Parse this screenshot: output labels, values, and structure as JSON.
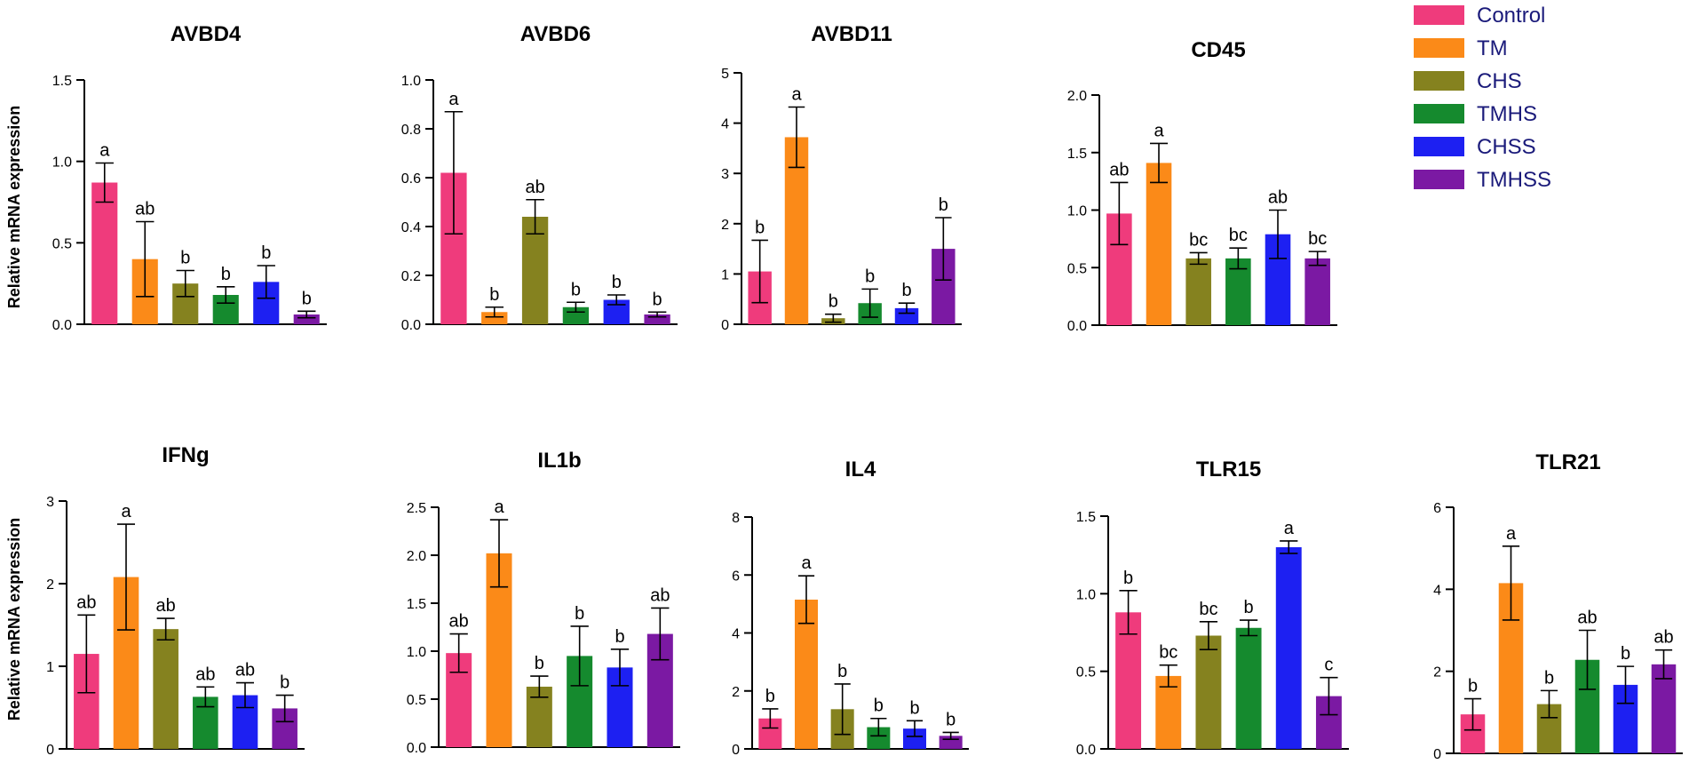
{
  "figure": {
    "ylabel": "Relative mRNA expression"
  },
  "legend": {
    "items": [
      {
        "name": "Control",
        "color": "#ef3b7c"
      },
      {
        "name": "TM",
        "color": "#fb8a18"
      },
      {
        "name": "CHS",
        "color": "#85821f"
      },
      {
        "name": "TMHS",
        "color": "#158a2e"
      },
      {
        "name": "CHSS",
        "color": "#1d20f2"
      },
      {
        "name": "TMHSS",
        "color": "#7b19a3"
      }
    ]
  },
  "chart_data": [
    {
      "type": "bar",
      "title": "AVBD4",
      "categories": [
        "Control",
        "TM",
        "CHS",
        "TMHS",
        "CHSS",
        "TMHSS"
      ],
      "values": [
        0.87,
        0.4,
        0.25,
        0.18,
        0.26,
        0.06
      ],
      "errors": [
        0.12,
        0.23,
        0.08,
        0.05,
        0.1,
        0.02
      ],
      "letters": [
        "a",
        "ab",
        "b",
        "b",
        "b",
        "b"
      ],
      "ylim": [
        0,
        1.5
      ],
      "yticks": [
        "0.0",
        "0.5",
        "1.0",
        "1.5"
      ],
      "ylabel": "Relative mRNA expression"
    },
    {
      "type": "bar",
      "title": "AVBD6",
      "categories": [
        "Control",
        "TM",
        "CHS",
        "TMHS",
        "CHSS",
        "TMHSS"
      ],
      "values": [
        0.62,
        0.05,
        0.44,
        0.07,
        0.1,
        0.04
      ],
      "errors": [
        0.25,
        0.02,
        0.07,
        0.02,
        0.02,
        0.01
      ],
      "letters": [
        "a",
        "b",
        "ab",
        "b",
        "b",
        "b"
      ],
      "ylim": [
        0,
        1.0
      ],
      "yticks": [
        "0.0",
        "0.2",
        "0.4",
        "0.6",
        "0.8",
        "1.0"
      ],
      "ylabel": ""
    },
    {
      "type": "bar",
      "title": "AVBD11",
      "categories": [
        "Control",
        "TM",
        "CHS",
        "TMHS",
        "CHSS",
        "TMHSS"
      ],
      "values": [
        1.05,
        3.72,
        0.12,
        0.42,
        0.32,
        1.5
      ],
      "errors": [
        0.62,
        0.6,
        0.08,
        0.28,
        0.1,
        0.62
      ],
      "letters": [
        "b",
        "a",
        "b",
        "b",
        "b",
        "b"
      ],
      "ylim": [
        0,
        5
      ],
      "yticks": [
        "0",
        "1",
        "2",
        "3",
        "4",
        "5"
      ],
      "ylabel": ""
    },
    {
      "type": "bar",
      "title": "CD45",
      "categories": [
        "Control",
        "TM",
        "CHS",
        "TMHS",
        "CHSS",
        "TMHSS"
      ],
      "values": [
        0.97,
        1.41,
        0.58,
        0.58,
        0.79,
        0.58
      ],
      "errors": [
        0.27,
        0.17,
        0.05,
        0.09,
        0.21,
        0.06
      ],
      "letters": [
        "ab",
        "a",
        "bc",
        "bc",
        "ab",
        "bc"
      ],
      "ylim": [
        0,
        2.0
      ],
      "yticks": [
        "0.0",
        "0.5",
        "1.0",
        "1.5",
        "2.0"
      ],
      "ylabel": ""
    },
    {
      "type": "bar",
      "title": "IFNg",
      "categories": [
        "Control",
        "TM",
        "CHS",
        "TMHS",
        "CHSS",
        "TMHSS"
      ],
      "values": [
        1.15,
        2.08,
        1.45,
        0.63,
        0.65,
        0.49
      ],
      "errors": [
        0.47,
        0.64,
        0.13,
        0.12,
        0.15,
        0.16
      ],
      "letters": [
        "ab",
        "a",
        "ab",
        "ab",
        "ab",
        "b"
      ],
      "ylim": [
        0,
        3
      ],
      "yticks": [
        "0",
        "1",
        "2",
        "3"
      ],
      "ylabel": "Relative mRNA expression"
    },
    {
      "type": "bar",
      "title": "IL1b",
      "categories": [
        "Control",
        "TM",
        "CHS",
        "TMHS",
        "CHSS",
        "TMHSS"
      ],
      "values": [
        0.98,
        2.02,
        0.63,
        0.95,
        0.83,
        1.18
      ],
      "errors": [
        0.2,
        0.35,
        0.11,
        0.31,
        0.19,
        0.27
      ],
      "letters": [
        "ab",
        "a",
        "b",
        "b",
        "b",
        "ab"
      ],
      "ylim": [
        0,
        2.5
      ],
      "yticks": [
        "0.0",
        "0.5",
        "1.0",
        "1.5",
        "2.0",
        "2.5"
      ],
      "ylabel": ""
    },
    {
      "type": "bar",
      "title": "IL4",
      "categories": [
        "Control",
        "TM",
        "CHS",
        "TMHS",
        "CHSS",
        "TMHSS"
      ],
      "values": [
        1.05,
        5.15,
        1.37,
        0.75,
        0.7,
        0.45
      ],
      "errors": [
        0.33,
        0.82,
        0.87,
        0.3,
        0.27,
        0.12
      ],
      "letters": [
        "b",
        "a",
        "b",
        "b",
        "b",
        "b"
      ],
      "ylim": [
        0,
        8
      ],
      "yticks": [
        "0",
        "2",
        "4",
        "6",
        "8"
      ],
      "ylabel": ""
    },
    {
      "type": "bar",
      "title": "TLR15",
      "categories": [
        "Control",
        "TM",
        "CHS",
        "TMHS",
        "CHSS",
        "TMHSS"
      ],
      "values": [
        0.88,
        0.47,
        0.73,
        0.78,
        1.3,
        0.34
      ],
      "errors": [
        0.14,
        0.07,
        0.09,
        0.05,
        0.04,
        0.12
      ],
      "letters": [
        "b",
        "bc",
        "bc",
        "b",
        "a",
        "c"
      ],
      "ylim": [
        0,
        1.5
      ],
      "yticks": [
        "0.0",
        "0.5",
        "1.0",
        "1.5"
      ],
      "ylabel": ""
    },
    {
      "type": "bar",
      "title": "TLR21",
      "categories": [
        "Control",
        "TM",
        "CHS",
        "TMHS",
        "CHSS",
        "TMHSS"
      ],
      "values": [
        0.95,
        4.15,
        1.2,
        2.28,
        1.67,
        2.17
      ],
      "errors": [
        0.38,
        0.9,
        0.33,
        0.72,
        0.45,
        0.35
      ],
      "letters": [
        "b",
        "a",
        "b",
        "ab",
        "b",
        "ab"
      ],
      "ylim": [
        0,
        6
      ],
      "yticks": [
        "0",
        "2",
        "4",
        "6"
      ],
      "ylabel": ""
    }
  ]
}
